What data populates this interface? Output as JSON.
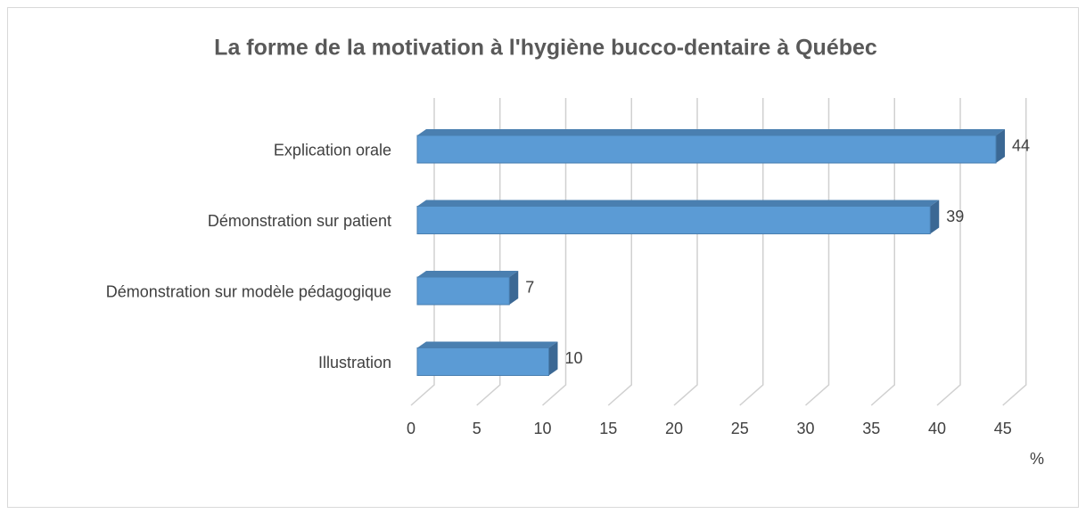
{
  "chart_data": {
    "type": "bar3d",
    "orientation": "horizontal",
    "title": "La forme de la motivation à l'hygiène bucco-dentaire à Québec",
    "categories": [
      "Explication orale",
      "Démonstration sur patient",
      "Démonstration sur modèle pédagogique",
      "Illustration"
    ],
    "values": [
      44,
      39,
      7,
      10
    ],
    "color": "#5b9bd5",
    "xlabel": "%",
    "xlim": [
      0,
      45
    ],
    "xticks": [
      0,
      5,
      10,
      15,
      20,
      25,
      30,
      35,
      40,
      45
    ],
    "grid": true
  }
}
